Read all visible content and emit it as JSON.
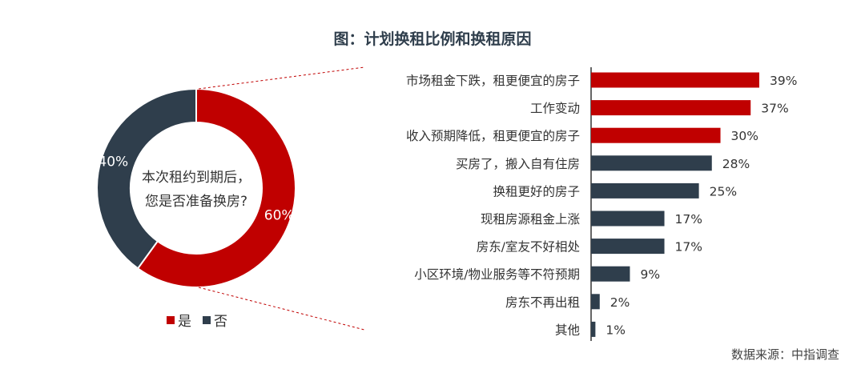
{
  "title": "图：计划换租比例和换租原因",
  "source": "数据来源：中指调查",
  "colors": {
    "red": "#c00000",
    "dark": "#2f3e4c"
  },
  "chart_data": [
    {
      "type": "pie",
      "center_text": [
        "本次租约到期后，",
        "您是否准备换房?"
      ],
      "categories": [
        "是",
        "否"
      ],
      "values": [
        60,
        40
      ],
      "labels": [
        "60%",
        "40%"
      ],
      "colors": [
        "#c00000",
        "#2f3e4c"
      ],
      "legend": "bottom"
    },
    {
      "type": "bar",
      "orientation": "horizontal",
      "categories": [
        "市场租金下跌，租更便宜的房子",
        "工作变动",
        "收入预期降低，租更便宜的房子",
        "买房了，搬入自有住房",
        "换租更好的房子",
        "现租房源租金上涨",
        "房东/室友不好相处",
        "小区环境/物业服务等不符预期",
        "房东不再出租",
        "其他"
      ],
      "values": [
        39,
        37,
        30,
        28,
        25,
        17,
        17,
        9,
        2,
        1
      ],
      "labels": [
        "39%",
        "37%",
        "30%",
        "28%",
        "25%",
        "17%",
        "17%",
        "9%",
        "2%",
        "1%"
      ],
      "colors": [
        "#c00000",
        "#c00000",
        "#c00000",
        "#2f3e4c",
        "#2f3e4c",
        "#2f3e4c",
        "#2f3e4c",
        "#2f3e4c",
        "#2f3e4c",
        "#2f3e4c"
      ]
    }
  ]
}
